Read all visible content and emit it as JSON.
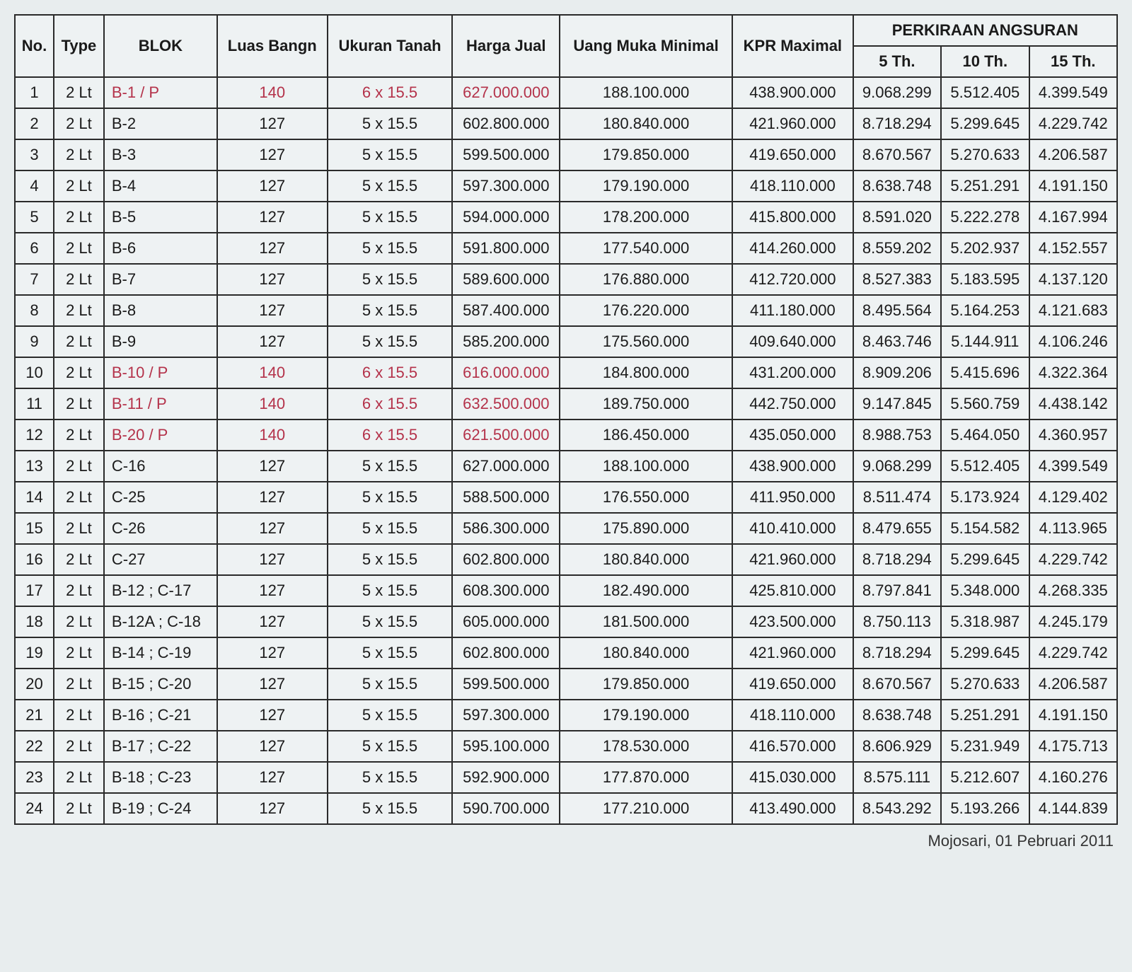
{
  "table": {
    "type": "table",
    "background_color": "#eef2f3",
    "border_color": "#2a2a2a",
    "highlight_color": "#b4324a",
    "dashed_color": "#c75a6e",
    "font_family": "Arial",
    "cell_fontsize": 22,
    "header_groups": {
      "no": "No.",
      "type": "Type",
      "blok": "BLOK",
      "luas_bangn": "Luas Bangn",
      "ukuran_tanah": "Ukuran Tanah",
      "harga_jual": "Harga Jual",
      "uang_muka": "Uang Muka Minimal",
      "kpr": "KPR Maximal",
      "angsuran": "PERKIRAAN ANGSURAN",
      "th5": "5 Th.",
      "th10": "10 Th.",
      "th15": "15 Th."
    },
    "column_align": {
      "no": "center",
      "type": "center",
      "blok": "left",
      "luas": "center",
      "ukuran": "center",
      "harga": "center",
      "uang": "center",
      "kpr": "center",
      "th5": "center",
      "th10": "center",
      "th15": "center"
    },
    "rows": [
      {
        "no": "1",
        "type": "2 Lt",
        "blok": "B-1 / P",
        "luas": "140",
        "ukuran": "6 x 15.5",
        "harga": "627.000.000",
        "uang": "188.100.000",
        "kpr": "438.900.000",
        "th5": "9.068.299",
        "th10": "5.512.405",
        "th15": "4.399.549",
        "highlight": true,
        "dashed": false
      },
      {
        "no": "2",
        "type": "2 Lt",
        "blok": "B-2",
        "luas": "127",
        "ukuran": "5 x 15.5",
        "harga": "602.800.000",
        "uang": "180.840.000",
        "kpr": "421.960.000",
        "th5": "8.718.294",
        "th10": "5.299.645",
        "th15": "4.229.742",
        "highlight": false,
        "dashed": false
      },
      {
        "no": "3",
        "type": "2 Lt",
        "blok": "B-3",
        "luas": "127",
        "ukuran": "5 x 15.5",
        "harga": "599.500.000",
        "uang": "179.850.000",
        "kpr": "419.650.000",
        "th5": "8.670.567",
        "th10": "5.270.633",
        "th15": "4.206.587",
        "highlight": false,
        "dashed": false
      },
      {
        "no": "4",
        "type": "2 Lt",
        "blok": "B-4",
        "luas": "127",
        "ukuran": "5 x 15.5",
        "harga": "597.300.000",
        "uang": "179.190.000",
        "kpr": "418.110.000",
        "th5": "8.638.748",
        "th10": "5.251.291",
        "th15": "4.191.150",
        "highlight": false,
        "dashed": false
      },
      {
        "no": "5",
        "type": "2 Lt",
        "blok": "B-5",
        "luas": "127",
        "ukuran": "5 x 15.5",
        "harga": "594.000.000",
        "uang": "178.200.000",
        "kpr": "415.800.000",
        "th5": "8.591.020",
        "th10": "5.222.278",
        "th15": "4.167.994",
        "highlight": false,
        "dashed": false
      },
      {
        "no": "6",
        "type": "2 Lt",
        "blok": "B-6",
        "luas": "127",
        "ukuran": "5 x 15.5",
        "harga": "591.800.000",
        "uang": "177.540.000",
        "kpr": "414.260.000",
        "th5": "8.559.202",
        "th10": "5.202.937",
        "th15": "4.152.557",
        "highlight": false,
        "dashed": true
      },
      {
        "no": "7",
        "type": "2 Lt",
        "blok": "B-7",
        "luas": "127",
        "ukuran": "5 x 15.5",
        "harga": "589.600.000",
        "uang": "176.880.000",
        "kpr": "412.720.000",
        "th5": "8.527.383",
        "th10": "5.183.595",
        "th15": "4.137.120",
        "highlight": false,
        "dashed": false
      },
      {
        "no": "8",
        "type": "2 Lt",
        "blok": "B-8",
        "luas": "127",
        "ukuran": "5 x 15.5",
        "harga": "587.400.000",
        "uang": "176.220.000",
        "kpr": "411.180.000",
        "th5": "8.495.564",
        "th10": "5.164.253",
        "th15": "4.121.683",
        "highlight": false,
        "dashed": false
      },
      {
        "no": "9",
        "type": "2 Lt",
        "blok": "B-9",
        "luas": "127",
        "ukuran": "5 x 15.5",
        "harga": "585.200.000",
        "uang": "175.560.000",
        "kpr": "409.640.000",
        "th5": "8.463.746",
        "th10": "5.144.911",
        "th15": "4.106.246",
        "highlight": false,
        "dashed": false
      },
      {
        "no": "10",
        "type": "2 Lt",
        "blok": "B-10 / P",
        "luas": "140",
        "ukuran": "6 x 15.5",
        "harga": "616.000.000",
        "uang": "184.800.000",
        "kpr": "431.200.000",
        "th5": "8.909.206",
        "th10": "5.415.696",
        "th15": "4.322.364",
        "highlight": true,
        "dashed": false
      },
      {
        "no": "11",
        "type": "2 Lt",
        "blok": "B-11 / P",
        "luas": "140",
        "ukuran": "6 x 15.5",
        "harga": "632.500.000",
        "uang": "189.750.000",
        "kpr": "442.750.000",
        "th5": "9.147.845",
        "th10": "5.560.759",
        "th15": "4.438.142",
        "highlight": true,
        "dashed": false
      },
      {
        "no": "12",
        "type": "2 Lt",
        "blok": "B-20 / P",
        "luas": "140",
        "ukuran": "6 x 15.5",
        "harga": "621.500.000",
        "uang": "186.450.000",
        "kpr": "435.050.000",
        "th5": "8.988.753",
        "th10": "5.464.050",
        "th15": "4.360.957",
        "highlight": true,
        "dashed": true
      },
      {
        "no": "13",
        "type": "2 Lt",
        "blok": "C-16",
        "luas": "127",
        "ukuran": "5 x 15.5",
        "harga": "627.000.000",
        "uang": "188.100.000",
        "kpr": "438.900.000",
        "th5": "9.068.299",
        "th10": "5.512.405",
        "th15": "4.399.549",
        "highlight": false,
        "dashed": false
      },
      {
        "no": "14",
        "type": "2 Lt",
        "blok": "C-25",
        "luas": "127",
        "ukuran": "5 x 15.5",
        "harga": "588.500.000",
        "uang": "176.550.000",
        "kpr": "411.950.000",
        "th5": "8.511.474",
        "th10": "5.173.924",
        "th15": "4.129.402",
        "highlight": false,
        "dashed": false
      },
      {
        "no": "15",
        "type": "2 Lt",
        "blok": "C-26",
        "luas": "127",
        "ukuran": "5 x 15.5",
        "harga": "586.300.000",
        "uang": "175.890.000",
        "kpr": "410.410.000",
        "th5": "8.479.655",
        "th10": "5.154.582",
        "th15": "4.113.965",
        "highlight": false,
        "dashed": false
      },
      {
        "no": "16",
        "type": "2 Lt",
        "blok": "C-27",
        "luas": "127",
        "ukuran": "5 x 15.5",
        "harga": "602.800.000",
        "uang": "180.840.000",
        "kpr": "421.960.000",
        "th5": "8.718.294",
        "th10": "5.299.645",
        "th15": "4.229.742",
        "highlight": false,
        "dashed": false
      },
      {
        "no": "17",
        "type": "2 Lt",
        "blok": "B-12 ; C-17",
        "luas": "127",
        "ukuran": "5 x 15.5",
        "harga": "608.300.000",
        "uang": "182.490.000",
        "kpr": "425.810.000",
        "th5": "8.797.841",
        "th10": "5.348.000",
        "th15": "4.268.335",
        "highlight": false,
        "dashed": false
      },
      {
        "no": "18",
        "type": "2 Lt",
        "blok": "B-12A ; C-18",
        "luas": "127",
        "ukuran": "5 x 15.5",
        "harga": "605.000.000",
        "uang": "181.500.000",
        "kpr": "423.500.000",
        "th5": "8.750.113",
        "th10": "5.318.987",
        "th15": "4.245.179",
        "highlight": false,
        "dashed": true
      },
      {
        "no": "19",
        "type": "2 Lt",
        "blok": "B-14 ; C-19",
        "luas": "127",
        "ukuran": "5 x 15.5",
        "harga": "602.800.000",
        "uang": "180.840.000",
        "kpr": "421.960.000",
        "th5": "8.718.294",
        "th10": "5.299.645",
        "th15": "4.229.742",
        "highlight": false,
        "dashed": false
      },
      {
        "no": "20",
        "type": "2 Lt",
        "blok": "B-15 ; C-20",
        "luas": "127",
        "ukuran": "5 x 15.5",
        "harga": "599.500.000",
        "uang": "179.850.000",
        "kpr": "419.650.000",
        "th5": "8.670.567",
        "th10": "5.270.633",
        "th15": "4.206.587",
        "highlight": false,
        "dashed": false
      },
      {
        "no": "21",
        "type": "2 Lt",
        "blok": "B-16 ; C-21",
        "luas": "127",
        "ukuran": "5 x 15.5",
        "harga": "597.300.000",
        "uang": "179.190.000",
        "kpr": "418.110.000",
        "th5": "8.638.748",
        "th10": "5.251.291",
        "th15": "4.191.150",
        "highlight": false,
        "dashed": false
      },
      {
        "no": "22",
        "type": "2 Lt",
        "blok": "B-17 ; C-22",
        "luas": "127",
        "ukuran": "5 x 15.5",
        "harga": "595.100.000",
        "uang": "178.530.000",
        "kpr": "416.570.000",
        "th5": "8.606.929",
        "th10": "5.231.949",
        "th15": "4.175.713",
        "highlight": false,
        "dashed": false
      },
      {
        "no": "23",
        "type": "2 Lt",
        "blok": "B-18 ; C-23",
        "luas": "127",
        "ukuran": "5 x 15.5",
        "harga": "592.900.000",
        "uang": "177.870.000",
        "kpr": "415.030.000",
        "th5": "8.575.111",
        "th10": "5.212.607",
        "th15": "4.160.276",
        "highlight": false,
        "dashed": false
      },
      {
        "no": "24",
        "type": "2 Lt",
        "blok": "B-19 ; C-24",
        "luas": "127",
        "ukuran": "5 x 15.5",
        "harga": "590.700.000",
        "uang": "177.210.000",
        "kpr": "413.490.000",
        "th5": "8.543.292",
        "th10": "5.193.266",
        "th15": "4.144.839",
        "highlight": false,
        "dashed": false
      }
    ]
  },
  "footer_text": "Mojosari, 01 Pebruari 2011"
}
